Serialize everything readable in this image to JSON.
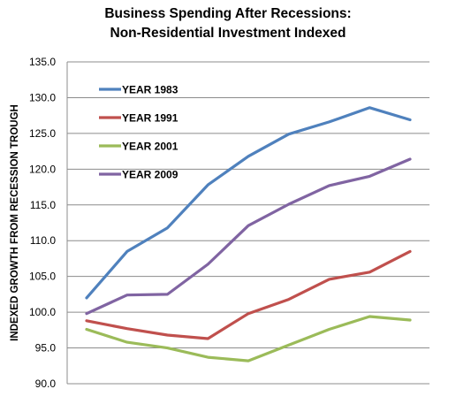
{
  "chart_data": {
    "type": "line",
    "title_lines": [
      "Business Spending After Recessions:",
      "Non-Residential Investment Indexed"
    ],
    "xlabel": "",
    "ylabel": "INDEXED GROWTH FROM RECESSION TROUGH",
    "ylim": [
      90,
      135
    ],
    "ytick_step": 5,
    "yticks": [
      "90.0",
      "95.0",
      "100.0",
      "105.0",
      "110.0",
      "115.0",
      "120.0",
      "125.0",
      "130.0",
      "135.0"
    ],
    "grid": true,
    "legend_position": "top-left",
    "x": [
      0,
      1,
      2,
      3,
      4,
      5,
      6,
      7,
      8
    ],
    "series": [
      {
        "name": "YEAR 1983",
        "color": "#4f81bd",
        "values": [
          102.0,
          108.5,
          111.8,
          117.8,
          121.8,
          124.9,
          126.6,
          128.6,
          126.9
        ]
      },
      {
        "name": "YEAR 1991",
        "color": "#c0504d",
        "values": [
          98.8,
          97.7,
          96.8,
          96.3,
          99.8,
          101.8,
          104.6,
          105.6,
          108.5
        ]
      },
      {
        "name": "YEAR 2001",
        "color": "#9bbb59",
        "values": [
          97.6,
          95.8,
          95.0,
          93.7,
          93.2,
          95.4,
          97.6,
          99.4,
          98.9
        ]
      },
      {
        "name": "YEAR 2009",
        "color": "#8064a2",
        "values": [
          99.8,
          102.4,
          102.5,
          106.7,
          112.1,
          115.1,
          117.7,
          119.0,
          121.4
        ]
      }
    ]
  }
}
